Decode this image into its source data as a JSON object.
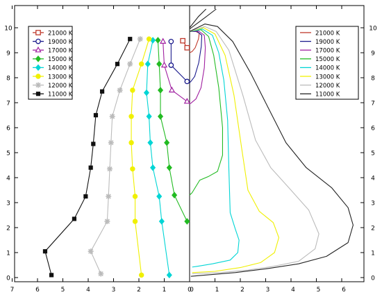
{
  "chart_data": {
    "type": "line",
    "y_axis": {
      "ticks": [
        0,
        1,
        2,
        3,
        4,
        5,
        6,
        7,
        8,
        9,
        10
      ],
      "tick_labels": [
        "0",
        "1",
        "2",
        "3",
        "4",
        "5",
        "6",
        "7",
        "8",
        "9",
        "10"
      ],
      "range": [
        -0.1,
        10.6
      ]
    },
    "left_x_axis": {
      "ticks": [
        7,
        6,
        5,
        4,
        3,
        2,
        1,
        0
      ],
      "tick_labels": [
        "7",
        "6",
        "5",
        "4",
        "3",
        "2",
        "1",
        "0"
      ],
      "range": [
        7.0,
        0.0
      ],
      "direction": "reversed"
    },
    "right_x_axis": {
      "ticks": [
        0,
        1,
        2,
        3,
        4,
        5,
        6
      ],
      "tick_labels": [
        "0",
        "1",
        "2",
        "3",
        "4",
        "5",
        "6"
      ],
      "range": [
        0.0,
        6.8
      ]
    },
    "grid": false,
    "left_panel": {
      "legend_position": "top-left",
      "series": [
        {
          "name": "21000 K",
          "color": "#c0392b",
          "marker": "square-open",
          "points": [
            [
              0.27,
              9.48
            ],
            [
              0.1,
              9.2
            ]
          ]
        },
        {
          "name": "19000 K",
          "color": "#1a1a8c",
          "marker": "circle-open",
          "points": [
            [
              0.73,
              9.45
            ],
            [
              0.73,
              8.5
            ],
            [
              0.1,
              7.85
            ]
          ]
        },
        {
          "name": "17000 K",
          "color": "#a020a0",
          "marker": "triangle-open",
          "points": [
            [
              1.05,
              9.45
            ],
            [
              1.0,
              8.5
            ],
            [
              0.7,
              7.5
            ],
            [
              0.1,
              7.05
            ]
          ]
        },
        {
          "name": "15000 K",
          "color": "#22bb22",
          "marker": "diamond-filled",
          "points": [
            [
              1.25,
              9.5
            ],
            [
              1.2,
              8.55
            ],
            [
              1.15,
              7.5
            ],
            [
              1.15,
              6.45
            ],
            [
              0.9,
              5.4
            ],
            [
              0.8,
              4.4
            ],
            [
              0.6,
              3.3
            ],
            [
              0.1,
              2.25
            ]
          ]
        },
        {
          "name": "14000 K",
          "color": "#00d5d5",
          "marker": "diamond-filled",
          "points": [
            [
              1.45,
              9.5
            ],
            [
              1.65,
              8.55
            ],
            [
              1.7,
              7.4
            ],
            [
              1.6,
              6.45
            ],
            [
              1.55,
              5.4
            ],
            [
              1.45,
              4.4
            ],
            [
              1.2,
              3.25
            ],
            [
              1.1,
              2.25
            ],
            [
              0.8,
              0.1
            ]
          ]
        },
        {
          "name": "13000 K",
          "color": "#f0f000",
          "marker": "circle-filled",
          "points": [
            [
              1.6,
              9.55
            ],
            [
              1.9,
              8.55
            ],
            [
              2.25,
              7.5
            ],
            [
              2.3,
              6.45
            ],
            [
              2.3,
              5.4
            ],
            [
              2.25,
              4.35
            ],
            [
              2.15,
              3.25
            ],
            [
              2.15,
              2.25
            ],
            [
              1.9,
              0.1
            ]
          ]
        },
        {
          "name": "12000 K",
          "color": "#bbbbbb",
          "marker": "star",
          "points": [
            [
              1.95,
              9.55
            ],
            [
              2.35,
              8.55
            ],
            [
              2.75,
              7.5
            ],
            [
              3.05,
              6.45
            ],
            [
              3.1,
              5.4
            ],
            [
              3.15,
              4.35
            ],
            [
              3.2,
              3.25
            ],
            [
              3.25,
              2.25
            ],
            [
              3.9,
              1.05
            ],
            [
              3.5,
              0.15
            ]
          ]
        },
        {
          "name": "11000 K",
          "color": "#111111",
          "marker": "square-filled",
          "points": [
            [
              2.35,
              9.55
            ],
            [
              2.85,
              8.55
            ],
            [
              3.45,
              7.45
            ],
            [
              3.7,
              6.5
            ],
            [
              3.8,
              5.35
            ],
            [
              3.9,
              4.4
            ],
            [
              4.1,
              3.25
            ],
            [
              4.55,
              2.35
            ],
            [
              5.7,
              1.05
            ],
            [
              5.45,
              0.1
            ]
          ]
        }
      ]
    },
    "right_panel": {
      "legend_position": "top-right",
      "series": [
        {
          "name": "21000 K",
          "color": "#c0392b",
          "points": [
            [
              0.0,
              9.85
            ],
            [
              0.25,
              9.85
            ],
            [
              0.38,
              9.78
            ],
            [
              0.35,
              9.55
            ],
            [
              0.22,
              9.2
            ],
            [
              0.1,
              9.05
            ],
            [
              0.0,
              9.0
            ]
          ]
        },
        {
          "name": "19000 K",
          "color": "#1a1a8c",
          "points": [
            [
              0.0,
              9.85
            ],
            [
              0.3,
              9.85
            ],
            [
              0.48,
              9.7
            ],
            [
              0.46,
              9.25
            ],
            [
              0.36,
              8.6
            ],
            [
              0.2,
              8.05
            ],
            [
              0.05,
              7.85
            ],
            [
              0.0,
              7.8
            ]
          ]
        },
        {
          "name": "17000 K",
          "color": "#a020a0",
          "points": [
            [
              0.0,
              9.85
            ],
            [
              0.35,
              9.87
            ],
            [
              0.58,
              9.7
            ],
            [
              0.62,
              9.2
            ],
            [
              0.58,
              8.4
            ],
            [
              0.45,
              7.6
            ],
            [
              0.25,
              7.15
            ],
            [
              0.05,
              6.98
            ],
            [
              0.0,
              6.95
            ]
          ]
        },
        {
          "name": "15000 K",
          "color": "#22bb22",
          "points": [
            [
              0.0,
              9.85
            ],
            [
              0.45,
              9.92
            ],
            [
              0.75,
              9.65
            ],
            [
              0.95,
              8.9
            ],
            [
              1.15,
              7.6
            ],
            [
              1.3,
              6.0
            ],
            [
              1.3,
              4.9
            ],
            [
              1.1,
              4.25
            ],
            [
              0.75,
              4.05
            ],
            [
              0.4,
              3.9
            ],
            [
              0.1,
              3.4
            ],
            [
              0.0,
              3.3
            ]
          ]
        },
        {
          "name": "14000 K",
          "color": "#00d5d5",
          "points": [
            [
              0.0,
              9.85
            ],
            [
              0.5,
              9.95
            ],
            [
              0.9,
              9.7
            ],
            [
              1.15,
              9.0
            ],
            [
              1.35,
              7.9
            ],
            [
              1.5,
              6.3
            ],
            [
              1.55,
              4.3
            ],
            [
              1.6,
              2.6
            ],
            [
              1.8,
              1.95
            ],
            [
              1.95,
              1.5
            ],
            [
              1.9,
              1.0
            ],
            [
              1.6,
              0.7
            ],
            [
              0.9,
              0.55
            ],
            [
              0.3,
              0.45
            ],
            [
              0.1,
              0.42
            ]
          ]
        },
        {
          "name": "13000 K",
          "color": "#f0f000",
          "points": [
            [
              0.0,
              9.85
            ],
            [
              0.55,
              10.0
            ],
            [
              1.0,
              9.75
            ],
            [
              1.4,
              8.9
            ],
            [
              1.75,
              7.3
            ],
            [
              2.05,
              5.2
            ],
            [
              2.3,
              3.5
            ],
            [
              2.75,
              2.65
            ],
            [
              3.3,
              2.2
            ],
            [
              3.52,
              1.6
            ],
            [
              3.35,
              1.0
            ],
            [
              2.8,
              0.6
            ],
            [
              2.0,
              0.4
            ],
            [
              1.0,
              0.25
            ],
            [
              0.1,
              0.2
            ]
          ]
        },
        {
          "name": "12000 K",
          "color": "#bbbbbb",
          "points": [
            [
              0.0,
              9.85
            ],
            [
              0.6,
              10.05
            ],
            [
              1.05,
              9.85
            ],
            [
              1.55,
              9.1
            ],
            [
              2.1,
              7.3
            ],
            [
              2.6,
              5.5
            ],
            [
              3.2,
              4.4
            ],
            [
              4.0,
              3.5
            ],
            [
              4.7,
              2.7
            ],
            [
              5.1,
              1.75
            ],
            [
              4.95,
              1.15
            ],
            [
              4.3,
              0.65
            ],
            [
              3.3,
              0.45
            ],
            [
              2.3,
              0.3
            ],
            [
              1.2,
              0.2
            ],
            [
              0.1,
              0.15
            ]
          ]
        },
        {
          "name": "11000 K",
          "color": "#222222",
          "points": [
            [
              0.0,
              9.85
            ],
            [
              0.6,
              10.15
            ],
            [
              1.1,
              10.05
            ],
            [
              1.7,
              9.45
            ],
            [
              2.4,
              8.2
            ],
            [
              3.1,
              6.8
            ],
            [
              3.8,
              5.4
            ],
            [
              4.6,
              4.4
            ],
            [
              5.6,
              3.6
            ],
            [
              6.25,
              2.8
            ],
            [
              6.45,
              2.1
            ],
            [
              6.25,
              1.4
            ],
            [
              5.4,
              0.85
            ],
            [
              4.3,
              0.55
            ],
            [
              3.0,
              0.35
            ],
            [
              1.8,
              0.2
            ],
            [
              0.6,
              0.1
            ],
            [
              0.05,
              0.05
            ]
          ]
        }
      ]
    },
    "top_lines": [
      {
        "color": "#222222",
        "points": [
          [
            0.0,
            9.95
          ],
          [
            0.6,
            10.4
          ],
          [
            1.05,
            10.75
          ]
        ]
      },
      {
        "color": "#222222",
        "points": [
          [
            0.0,
            10.0
          ],
          [
            0.35,
            10.45
          ],
          [
            0.65,
            10.75
          ]
        ]
      }
    ]
  }
}
